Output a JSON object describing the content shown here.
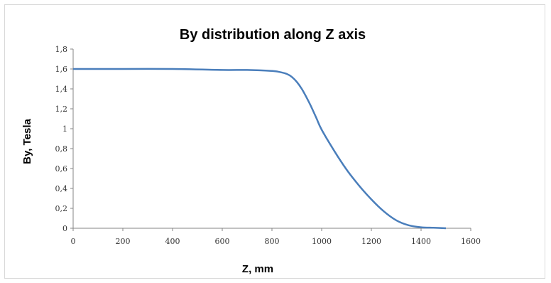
{
  "chart_data": {
    "type": "line",
    "title": "By distribution along Z axis",
    "xlabel": "Z, mm",
    "ylabel": "By, Tesla",
    "xlim": [
      0,
      1600
    ],
    "ylim": [
      0,
      1.8
    ],
    "x_ticks": [
      "0",
      "200",
      "400",
      "600",
      "800",
      "1000",
      "1200",
      "1400",
      "1600"
    ],
    "y_ticks": [
      "0",
      "0,2",
      "0,4",
      "0,6",
      "0,8",
      "1",
      "1,2",
      "1,4",
      "1,6",
      "1,8"
    ],
    "grid": false,
    "legend": "none",
    "color": "#4a7ebb",
    "series": [
      {
        "x": [
          0,
          200,
          400,
          600,
          700,
          800,
          830,
          860,
          880,
          900,
          920,
          940,
          960,
          980,
          1000,
          1050,
          1100,
          1150,
          1200,
          1250,
          1300,
          1350,
          1400,
          1450,
          1500
        ],
        "values": [
          1.6,
          1.6,
          1.6,
          1.59,
          1.59,
          1.58,
          1.57,
          1.55,
          1.52,
          1.47,
          1.4,
          1.31,
          1.21,
          1.1,
          0.99,
          0.78,
          0.59,
          0.43,
          0.29,
          0.17,
          0.08,
          0.03,
          0.01,
          0.005,
          0.0
        ]
      }
    ]
  }
}
